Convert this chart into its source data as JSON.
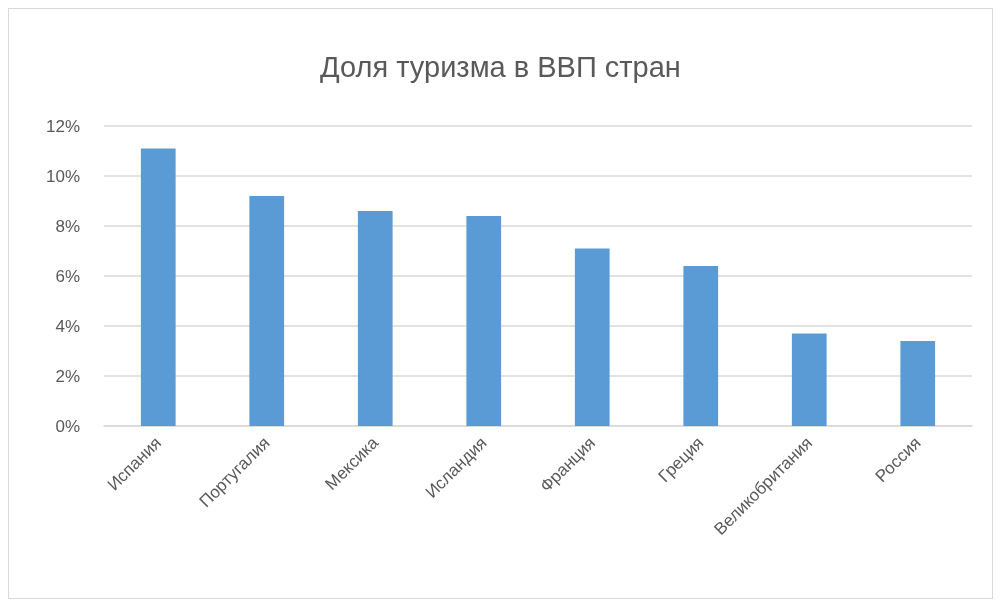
{
  "chart_data": {
    "type": "bar",
    "title": "Доля туризма в ВВП стран",
    "categories": [
      "Испания",
      "Португалия",
      "Мексика",
      "Исландия",
      "Франция",
      "Греция",
      "Великобритания",
      "Россия"
    ],
    "values": [
      11.1,
      9.2,
      8.6,
      8.4,
      7.1,
      6.4,
      3.7,
      3.4
    ],
    "color": "#5b9bd5",
    "ylim": [
      0,
      12
    ],
    "yticks": [
      {
        "value": 0,
        "label": "0%"
      },
      {
        "value": 2,
        "label": "2%"
      },
      {
        "value": 4,
        "label": "4%"
      },
      {
        "value": 6,
        "label": "6%"
      },
      {
        "value": 8,
        "label": "8%"
      },
      {
        "value": 10,
        "label": "10%"
      },
      {
        "value": 12,
        "label": "12%"
      }
    ],
    "grid": "y"
  }
}
